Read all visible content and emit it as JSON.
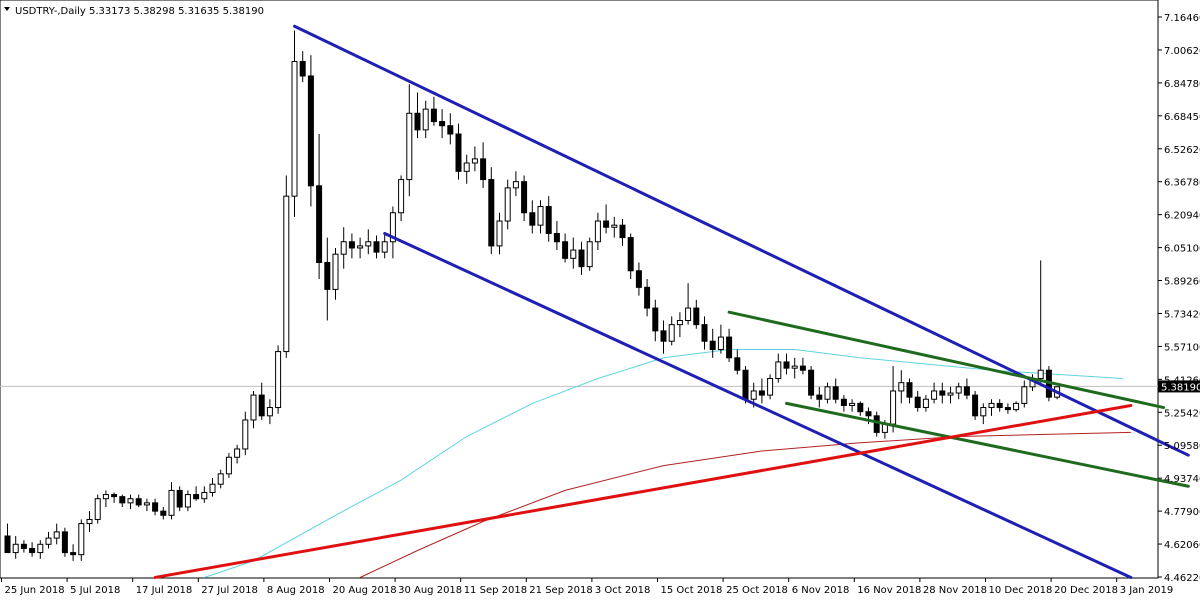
{
  "header": {
    "symbol": "USDTRY-,Daily",
    "ohlc": "5.33173 5.38298 5.31635 5.38190"
  },
  "price_tag": "5.38190",
  "colors": {
    "background": "#ffffff",
    "bull_body": "#ffffff",
    "bear_body": "#000000",
    "candle_outline": "#000000",
    "ma_short": "#5fd3e0",
    "ma_long": "#b22222",
    "channel": "#1f1fb4",
    "wedge": "#1f6a1f",
    "support": "#e01010",
    "price_line": "#c0c0c0",
    "price_tag_bg": "#000000"
  },
  "icons": {
    "dropdown": "triangle-down-icon"
  },
  "chart_data": {
    "type": "candlestick",
    "title": "USDTRY-,Daily",
    "ylim": [
      4.4622,
      7.1646
    ],
    "y_ticks": [
      "7.16460",
      "7.00620",
      "6.84780",
      "6.68450",
      "6.52620",
      "6.36780",
      "6.20940",
      "6.05100",
      "5.89260",
      "5.73420",
      "5.57100",
      "5.41260",
      "5.25420",
      "5.09580",
      "4.93740",
      "4.77900",
      "4.62060",
      "4.46220"
    ],
    "x_ticks": [
      {
        "label": "25 Jun 2018",
        "day": 0
      },
      {
        "label": "5 Jul 2018",
        "day": 8
      },
      {
        "label": "17 Jul 2018",
        "day": 16
      },
      {
        "label": "27 Jul 2018",
        "day": 24
      },
      {
        "label": "8 Aug 2018",
        "day": 32
      },
      {
        "label": "20 Aug 2018",
        "day": 40
      },
      {
        "label": "30 Aug 2018",
        "day": 48
      },
      {
        "label": "11 Sep 2018",
        "day": 56
      },
      {
        "label": "21 Sep 2018",
        "day": 64
      },
      {
        "label": "3 Oct 2018",
        "day": 72
      },
      {
        "label": "15 Oct 2018",
        "day": 80
      },
      {
        "label": "25 Oct 2018",
        "day": 88
      },
      {
        "label": "6 Nov 2018",
        "day": 96
      },
      {
        "label": "16 Nov 2018",
        "day": 104
      },
      {
        "label": "28 Nov 2018",
        "day": 112
      },
      {
        "label": "10 Dec 2018",
        "day": 120
      },
      {
        "label": "20 Dec 2018",
        "day": 128
      },
      {
        "label": "3 Jan 2019",
        "day": 136
      }
    ],
    "candles": [
      [
        4.66,
        4.72,
        4.6,
        4.58
      ],
      [
        4.58,
        4.66,
        4.55,
        4.62
      ],
      [
        4.62,
        4.64,
        4.58,
        4.6
      ],
      [
        4.6,
        4.63,
        4.56,
        4.58
      ],
      [
        4.58,
        4.64,
        4.55,
        4.62
      ],
      [
        4.62,
        4.68,
        4.6,
        4.65
      ],
      [
        4.65,
        4.72,
        4.62,
        4.68
      ],
      [
        4.68,
        4.7,
        4.56,
        4.58
      ],
      [
        4.58,
        4.62,
        4.54,
        4.57
      ],
      [
        4.57,
        4.74,
        4.54,
        4.72
      ],
      [
        4.72,
        4.78,
        4.68,
        4.74
      ],
      [
        4.74,
        4.86,
        4.72,
        4.84
      ],
      [
        4.84,
        4.88,
        4.8,
        4.86
      ],
      [
        4.86,
        4.87,
        4.82,
        4.85
      ],
      [
        4.85,
        4.86,
        4.8,
        4.82
      ],
      [
        4.82,
        4.86,
        4.79,
        4.84
      ],
      [
        4.84,
        4.86,
        4.8,
        4.81
      ],
      [
        4.81,
        4.84,
        4.78,
        4.82
      ],
      [
        4.82,
        4.84,
        4.76,
        4.78
      ],
      [
        4.78,
        4.8,
        4.74,
        4.76
      ],
      [
        4.76,
        4.92,
        4.74,
        4.88
      ],
      [
        4.88,
        4.9,
        4.78,
        4.8
      ],
      [
        4.8,
        4.88,
        4.78,
        4.86
      ],
      [
        4.86,
        4.9,
        4.83,
        4.84
      ],
      [
        4.84,
        4.9,
        4.82,
        4.87
      ],
      [
        4.87,
        4.94,
        4.85,
        4.91
      ],
      [
        4.91,
        4.98,
        4.89,
        4.96
      ],
      [
        4.96,
        5.06,
        4.94,
        5.04
      ],
      [
        5.04,
        5.1,
        5.01,
        5.08
      ],
      [
        5.08,
        5.26,
        5.05,
        5.22
      ],
      [
        5.22,
        5.36,
        5.18,
        5.34
      ],
      [
        5.34,
        5.4,
        5.22,
        5.24
      ],
      [
        5.24,
        5.32,
        5.2,
        5.28
      ],
      [
        5.28,
        5.58,
        5.25,
        5.55
      ],
      [
        5.55,
        6.4,
        5.52,
        6.3
      ],
      [
        6.3,
        7.1,
        6.2,
        6.95
      ],
      [
        6.95,
        7.0,
        6.85,
        6.88
      ],
      [
        6.88,
        6.98,
        6.25,
        6.35
      ],
      [
        6.35,
        6.6,
        5.9,
        5.98
      ],
      [
        5.98,
        6.1,
        5.7,
        5.85
      ],
      [
        5.85,
        6.05,
        5.8,
        6.02
      ],
      [
        6.02,
        6.15,
        5.95,
        6.08
      ],
      [
        6.08,
        6.12,
        6.0,
        6.05
      ],
      [
        6.05,
        6.1,
        6.0,
        6.06
      ],
      [
        6.06,
        6.14,
        6.02,
        6.08
      ],
      [
        6.08,
        6.11,
        6.0,
        6.03
      ],
      [
        6.03,
        6.12,
        6.0,
        6.08
      ],
      [
        6.08,
        6.25,
        6.0,
        6.22
      ],
      [
        6.22,
        6.4,
        6.18,
        6.38
      ],
      [
        6.38,
        6.84,
        6.3,
        6.7
      ],
      [
        6.7,
        6.8,
        6.58,
        6.62
      ],
      [
        6.62,
        6.76,
        6.58,
        6.72
      ],
      [
        6.72,
        6.78,
        6.64,
        6.66
      ],
      [
        6.66,
        6.72,
        6.58,
        6.64
      ],
      [
        6.64,
        6.7,
        6.55,
        6.6
      ],
      [
        6.6,
        6.65,
        6.38,
        6.42
      ],
      [
        6.42,
        6.5,
        6.36,
        6.46
      ],
      [
        6.46,
        6.54,
        6.42,
        6.48
      ],
      [
        6.48,
        6.56,
        6.34,
        6.38
      ],
      [
        6.38,
        6.44,
        6.02,
        6.06
      ],
      [
        6.06,
        6.22,
        6.02,
        6.18
      ],
      [
        6.18,
        6.38,
        6.14,
        6.34
      ],
      [
        6.34,
        6.42,
        6.3,
        6.37
      ],
      [
        6.37,
        6.4,
        6.18,
        6.22
      ],
      [
        6.22,
        6.28,
        6.12,
        6.16
      ],
      [
        6.16,
        6.28,
        6.12,
        6.25
      ],
      [
        6.25,
        6.3,
        6.08,
        6.12
      ],
      [
        6.12,
        6.18,
        6.04,
        6.08
      ],
      [
        6.08,
        6.12,
        5.98,
        6.0
      ],
      [
        6.0,
        6.1,
        5.95,
        6.04
      ],
      [
        6.04,
        6.08,
        5.92,
        5.96
      ],
      [
        5.96,
        6.1,
        5.94,
        6.08
      ],
      [
        6.08,
        6.22,
        6.04,
        6.18
      ],
      [
        6.18,
        6.26,
        6.12,
        6.15
      ],
      [
        6.15,
        6.2,
        6.1,
        6.16
      ],
      [
        6.16,
        6.19,
        6.06,
        6.1
      ],
      [
        6.1,
        6.12,
        5.9,
        5.94
      ],
      [
        5.94,
        5.98,
        5.82,
        5.86
      ],
      [
        5.86,
        5.9,
        5.72,
        5.76
      ],
      [
        5.76,
        5.8,
        5.6,
        5.65
      ],
      [
        5.65,
        5.7,
        5.54,
        5.6
      ],
      [
        5.6,
        5.72,
        5.58,
        5.68
      ],
      [
        5.68,
        5.74,
        5.62,
        5.7
      ],
      [
        5.7,
        5.88,
        5.68,
        5.76
      ],
      [
        5.76,
        5.8,
        5.66,
        5.68
      ],
      [
        5.68,
        5.72,
        5.56,
        5.6
      ],
      [
        5.6,
        5.66,
        5.52,
        5.56
      ],
      [
        5.56,
        5.68,
        5.54,
        5.62
      ],
      [
        5.62,
        5.66,
        5.5,
        5.52
      ],
      [
        5.52,
        5.56,
        5.44,
        5.46
      ],
      [
        5.46,
        5.48,
        5.3,
        5.32
      ],
      [
        5.32,
        5.4,
        5.28,
        5.36
      ],
      [
        5.36,
        5.42,
        5.3,
        5.34
      ],
      [
        5.34,
        5.44,
        5.32,
        5.42
      ],
      [
        5.42,
        5.54,
        5.4,
        5.5
      ],
      [
        5.5,
        5.54,
        5.44,
        5.47
      ],
      [
        5.47,
        5.52,
        5.42,
        5.48
      ],
      [
        5.48,
        5.52,
        5.44,
        5.46
      ],
      [
        5.46,
        5.48,
        5.32,
        5.34
      ],
      [
        5.34,
        5.38,
        5.28,
        5.32
      ],
      [
        5.32,
        5.4,
        5.3,
        5.38
      ],
      [
        5.38,
        5.42,
        5.3,
        5.32
      ],
      [
        5.32,
        5.34,
        5.26,
        5.29
      ],
      [
        5.29,
        5.32,
        5.26,
        5.3
      ],
      [
        5.3,
        5.31,
        5.24,
        5.26
      ],
      [
        5.26,
        5.28,
        5.2,
        5.24
      ],
      [
        5.24,
        5.26,
        5.14,
        5.16
      ],
      [
        5.16,
        5.22,
        5.13,
        5.2
      ],
      [
        5.2,
        5.48,
        5.16,
        5.36
      ],
      [
        5.36,
        5.46,
        5.3,
        5.4
      ],
      [
        5.4,
        5.42,
        5.3,
        5.33
      ],
      [
        5.33,
        5.36,
        5.26,
        5.28
      ],
      [
        5.28,
        5.34,
        5.26,
        5.32
      ],
      [
        5.32,
        5.4,
        5.3,
        5.36
      ],
      [
        5.36,
        5.4,
        5.3,
        5.34
      ],
      [
        5.34,
        5.38,
        5.3,
        5.35
      ],
      [
        5.35,
        5.4,
        5.32,
        5.38
      ],
      [
        5.38,
        5.42,
        5.32,
        5.34
      ],
      [
        5.34,
        5.36,
        5.22,
        5.24
      ],
      [
        5.24,
        5.3,
        5.2,
        5.28
      ],
      [
        5.28,
        5.32,
        5.24,
        5.3
      ],
      [
        5.3,
        5.32,
        5.26,
        5.28
      ],
      [
        5.28,
        5.3,
        5.25,
        5.27
      ],
      [
        5.27,
        5.31,
        5.26,
        5.3
      ],
      [
        5.3,
        5.41,
        5.28,
        5.38
      ],
      [
        5.38,
        5.44,
        5.36,
        5.42
      ],
      [
        5.42,
        5.99,
        5.4,
        5.46
      ],
      [
        5.46,
        5.48,
        5.31,
        5.33
      ],
      [
        5.33,
        5.38,
        5.32,
        5.38
      ]
    ],
    "ma_short": [
      {
        "day": 24,
        "value": 4.46
      },
      {
        "day": 30,
        "value": 4.54
      },
      {
        "day": 40,
        "value": 4.76
      },
      {
        "day": 48,
        "value": 4.93
      },
      {
        "day": 56,
        "value": 5.14
      },
      {
        "day": 64,
        "value": 5.3
      },
      {
        "day": 72,
        "value": 5.42
      },
      {
        "day": 80,
        "value": 5.52
      },
      {
        "day": 88,
        "value": 5.56
      },
      {
        "day": 96,
        "value": 5.56
      },
      {
        "day": 104,
        "value": 5.52
      },
      {
        "day": 112,
        "value": 5.49
      },
      {
        "day": 120,
        "value": 5.46
      },
      {
        "day": 128,
        "value": 5.44
      },
      {
        "day": 136,
        "value": 5.42
      }
    ],
    "ma_long": [
      {
        "day": 43,
        "value": 4.46
      },
      {
        "day": 50,
        "value": 4.59
      },
      {
        "day": 58,
        "value": 4.73
      },
      {
        "day": 68,
        "value": 4.88
      },
      {
        "day": 80,
        "value": 5.0
      },
      {
        "day": 92,
        "value": 5.07
      },
      {
        "day": 104,
        "value": 5.11
      },
      {
        "day": 116,
        "value": 5.14
      },
      {
        "day": 126,
        "value": 5.15
      },
      {
        "day": 137,
        "value": 5.16
      }
    ],
    "trendlines": [
      {
        "name": "channel-upper",
        "kind": "channel",
        "from": {
          "day": 35,
          "value": 7.12
        },
        "to": {
          "day": 144,
          "value": 5.05
        }
      },
      {
        "name": "channel-lower",
        "kind": "channel",
        "from": {
          "day": 46,
          "value": 6.12
        },
        "to": {
          "day": 137,
          "value": 4.46
        }
      },
      {
        "name": "wedge-upper",
        "kind": "wedge",
        "from": {
          "day": 88,
          "value": 5.74
        },
        "to": {
          "day": 141,
          "value": 5.28
        }
      },
      {
        "name": "wedge-lower",
        "kind": "wedge",
        "from": {
          "day": 95,
          "value": 5.3
        },
        "to": {
          "day": 144,
          "value": 4.9
        }
      },
      {
        "name": "support",
        "kind": "support",
        "from": {
          "day": 18,
          "value": 4.46
        },
        "to": {
          "day": 137,
          "value": 5.29
        }
      }
    ],
    "last_price": 5.3819,
    "grid": false
  }
}
